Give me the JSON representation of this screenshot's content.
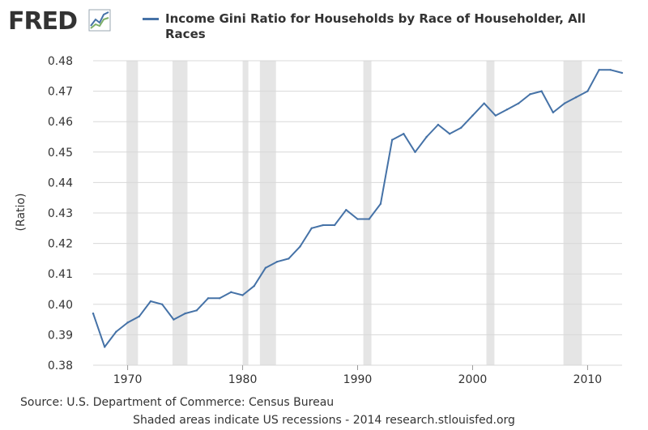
{
  "logo": {
    "text": "FRED",
    "icon": "chart-line-icon"
  },
  "colors": {
    "series": "#4572a7",
    "recession": "#e5e5e5",
    "grid": "#d8d8d8",
    "text": "#333333"
  },
  "footer": {
    "source": "Source: U.S. Department of Commerce: Census Bureau",
    "note": "Shaded areas indicate US recessions - 2014 research.stlouisfed.org"
  },
  "chart_data": {
    "type": "line",
    "title": "",
    "ylabel": "(Ratio)",
    "xlabel": "",
    "xlim": [
      1967,
      2013
    ],
    "ylim": [
      0.38,
      0.48
    ],
    "grid": true,
    "legend_placement": "top",
    "x_ticks": [
      1970,
      1980,
      1990,
      2000,
      2010
    ],
    "y_ticks": [
      "0.38",
      "0.39",
      "0.40",
      "0.41",
      "0.42",
      "0.43",
      "0.44",
      "0.45",
      "0.46",
      "0.47",
      "0.48"
    ],
    "recessions": [
      [
        1969.9,
        1970.9
      ],
      [
        1973.9,
        1975.2
      ],
      [
        1980.0,
        1980.5
      ],
      [
        1981.5,
        1982.9
      ],
      [
        1990.5,
        1991.2
      ],
      [
        2001.2,
        2001.9
      ],
      [
        2007.9,
        2009.5
      ]
    ],
    "series": [
      {
        "name": "Income Gini Ratio for Households by Race of Householder, All Races",
        "x": [
          1967,
          1968,
          1969,
          1970,
          1971,
          1972,
          1973,
          1974,
          1975,
          1976,
          1977,
          1978,
          1979,
          1980,
          1981,
          1982,
          1983,
          1984,
          1985,
          1986,
          1987,
          1988,
          1989,
          1990,
          1991,
          1992,
          1993,
          1994,
          1995,
          1996,
          1997,
          1998,
          1999,
          2000,
          2001,
          2002,
          2003,
          2004,
          2005,
          2006,
          2007,
          2008,
          2009,
          2010,
          2011,
          2012,
          2013
        ],
        "values": [
          0.397,
          0.386,
          0.391,
          0.394,
          0.396,
          0.401,
          0.4,
          0.395,
          0.397,
          0.398,
          0.402,
          0.402,
          0.404,
          0.403,
          0.406,
          0.412,
          0.414,
          0.415,
          0.419,
          0.425,
          0.426,
          0.426,
          0.431,
          0.428,
          0.428,
          0.433,
          0.454,
          0.456,
          0.45,
          0.455,
          0.459,
          0.456,
          0.458,
          0.462,
          0.466,
          0.462,
          0.464,
          0.466,
          0.469,
          0.47,
          0.463,
          0.466,
          0.468,
          0.47,
          0.477,
          0.477,
          0.476
        ]
      }
    ]
  }
}
